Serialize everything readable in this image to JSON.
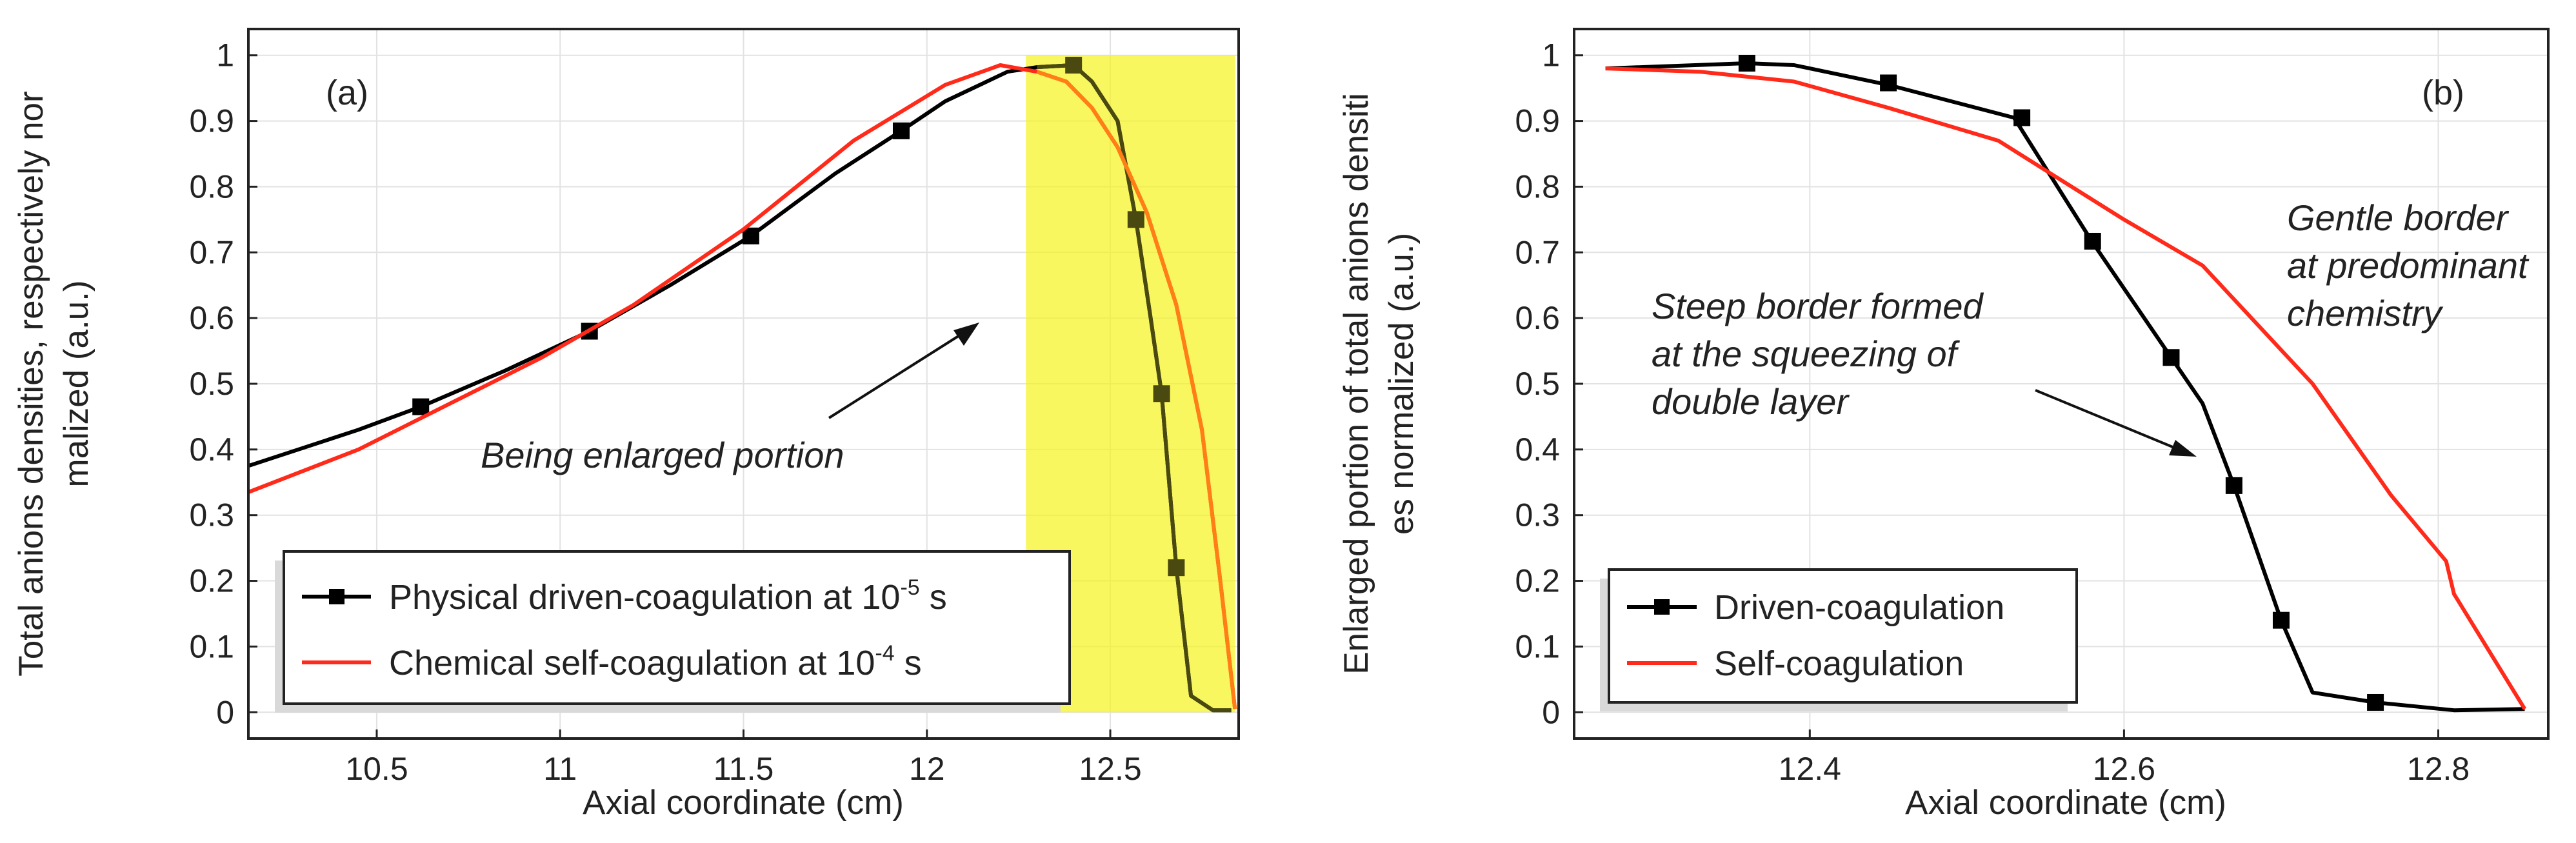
{
  "figure": {
    "colors": {
      "series_black": "#000000",
      "series_red": "#ff2a1a",
      "highlight_fill": "#f7f41c",
      "highlight_dark_line": "#4a4a10",
      "highlight_orange_line": "#ff7f16",
      "grid": "#e2e2e2"
    }
  },
  "chart_data": [
    {
      "type": "line",
      "panel": "(a)",
      "xlabel": "Axial coordinate (cm)",
      "ylabel_line1": "Total anions densities, respectively nor",
      "ylabel_line2": "malized (a.u.)",
      "xlim": [
        10.15,
        12.85
      ],
      "ylim": [
        -0.04,
        1.04
      ],
      "xticks": [
        10.5,
        11,
        11.5,
        12,
        12.5
      ],
      "xtick_labels": [
        "10.5",
        "11",
        "11.5",
        "12",
        "12.5"
      ],
      "yticks": [
        0,
        0.1,
        0.2,
        0.3,
        0.4,
        0.5,
        0.6,
        0.7,
        0.8,
        0.9,
        1
      ],
      "ytick_labels": [
        "0",
        "0.1",
        "0.2",
        "0.3",
        "0.4",
        "0.5",
        "0.6",
        "0.7",
        "0.8",
        "0.9",
        "1"
      ],
      "grid": true,
      "legend_position": "bottom-left",
      "highlight": {
        "x_range": [
          12.27,
          12.84
        ],
        "label": "Being enlarged portion"
      },
      "annotations": [
        {
          "text": "Being enlarged portion",
          "x": 11.9,
          "y": 0.39
        }
      ],
      "series": [
        {
          "name": "Physical driven-coagulation at 10^-5 s",
          "legend_main": "Physical driven-coagulation at 10",
          "legend_sup": "-5",
          "legend_tail": " s",
          "color": "#000000",
          "marker": "square",
          "x": [
            10.15,
            10.45,
            10.62,
            10.85,
            11.08,
            11.3,
            11.52,
            11.75,
            11.93,
            12.05,
            12.22,
            12.3,
            12.4,
            12.45,
            12.52,
            12.57,
            12.61,
            12.64,
            12.68,
            12.72,
            12.78,
            12.83
          ],
          "y": [
            0.375,
            0.43,
            0.465,
            0.52,
            0.58,
            0.65,
            0.725,
            0.82,
            0.885,
            0.93,
            0.975,
            0.982,
            0.985,
            0.96,
            0.9,
            0.75,
            0.6,
            0.485,
            0.22,
            0.025,
            0.003,
            0.003
          ],
          "markers_x": [
            10.62,
            11.08,
            11.52,
            11.93,
            12.4,
            12.57,
            12.64,
            12.68
          ],
          "markers_y": [
            0.465,
            0.58,
            0.725,
            0.885,
            0.985,
            0.75,
            0.485,
            0.22
          ]
        },
        {
          "name": "Chemical self-coagulation at 10^-4 s",
          "legend_main": "Chemical self-coagulation at 10",
          "legend_sup": "-4",
          "legend_tail": " s",
          "color": "#ff2a1a",
          "marker": "none",
          "x": [
            10.15,
            10.45,
            10.7,
            10.95,
            11.2,
            11.5,
            11.8,
            12.05,
            12.2,
            12.3,
            12.38,
            12.45,
            12.52,
            12.6,
            12.68,
            12.75,
            12.8,
            12.84
          ],
          "y": [
            0.335,
            0.4,
            0.47,
            0.54,
            0.62,
            0.735,
            0.87,
            0.955,
            0.985,
            0.975,
            0.96,
            0.92,
            0.86,
            0.76,
            0.62,
            0.43,
            0.2,
            0.005
          ]
        }
      ]
    },
    {
      "type": "line",
      "panel": "(b)",
      "xlabel": "Axial coordinate (cm)",
      "ylabel_line1": "Enlarged portion of total anions densiti",
      "ylabel_line2": "es normalized (a.u.)",
      "xlim": [
        12.25,
        12.87
      ],
      "ylim": [
        -0.04,
        1.04
      ],
      "xticks": [
        12.4,
        12.6,
        12.8
      ],
      "xtick_labels": [
        "12.4",
        "12.6",
        "12.8"
      ],
      "yticks": [
        0,
        0.1,
        0.2,
        0.3,
        0.4,
        0.5,
        0.6,
        0.7,
        0.8,
        0.9,
        1
      ],
      "ytick_labels": [
        "0",
        "0.1",
        "0.2",
        "0.3",
        "0.4",
        "0.5",
        "0.6",
        "0.7",
        "0.8",
        "0.9",
        "1"
      ],
      "grid": true,
      "legend_position": "bottom-left",
      "annotations": [
        {
          "line1": "Steep border formed",
          "line2": "at the squeezing of",
          "line3": "double layer"
        },
        {
          "line1": "Gentle border",
          "line2": "at predominant",
          "line3": "chemistry"
        }
      ],
      "series": [
        {
          "name": "Driven-coagulation",
          "color": "#000000",
          "marker": "square",
          "x": [
            12.27,
            12.36,
            12.39,
            12.45,
            12.53,
            12.58,
            12.63,
            12.65,
            12.67,
            12.7,
            12.72,
            12.76,
            12.81,
            12.855
          ],
          "y": [
            0.98,
            0.988,
            0.985,
            0.955,
            0.905,
            0.715,
            0.54,
            0.47,
            0.345,
            0.14,
            0.03,
            0.015,
            0.003,
            0.005
          ],
          "markers_x": [
            12.36,
            12.45,
            12.535,
            12.58,
            12.63,
            12.67,
            12.7,
            12.76
          ],
          "markers_y": [
            0.988,
            0.958,
            0.905,
            0.717,
            0.54,
            0.345,
            0.14,
            0.015
          ]
        },
        {
          "name": "Self-coagulation",
          "color": "#ff2a1a",
          "marker": "none",
          "x": [
            12.27,
            12.33,
            12.39,
            12.45,
            12.52,
            12.56,
            12.6,
            12.65,
            12.72,
            12.77,
            12.805,
            12.81,
            12.855
          ],
          "y": [
            0.98,
            0.975,
            0.96,
            0.92,
            0.87,
            0.81,
            0.75,
            0.68,
            0.5,
            0.33,
            0.23,
            0.18,
            0.005
          ]
        }
      ]
    }
  ]
}
